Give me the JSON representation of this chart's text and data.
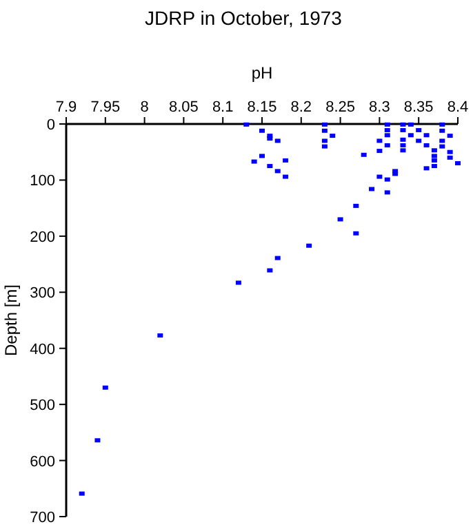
{
  "chart_data": {
    "type": "scatter",
    "title": "JDRP in October, 1973",
    "xlabel": "pH",
    "ylabel": "Depth [m]",
    "xlim": [
      7.9,
      8.4
    ],
    "xticks": [
      7.9,
      7.95,
      8,
      8.05,
      8.1,
      8.15,
      8.2,
      8.25,
      8.3,
      8.35,
      8.4
    ],
    "ylim": [
      700,
      0
    ],
    "yticks": [
      0,
      100,
      200,
      300,
      400,
      500,
      600,
      700
    ],
    "grid": false,
    "marker": "square",
    "series": [
      {
        "color": "#0000ff",
        "x": [
          8.13,
          8.15,
          8.16,
          8.16,
          8.17,
          8.15,
          8.14,
          8.18,
          8.16,
          8.17,
          8.18,
          8.23,
          8.23,
          8.24,
          8.23,
          8.23,
          8.28,
          8.3,
          8.3,
          8.31,
          8.31,
          8.31,
          8.31,
          8.33,
          8.33,
          8.33,
          8.33,
          8.33,
          8.34,
          8.34,
          8.35,
          8.35,
          8.36,
          8.36,
          8.38,
          8.38,
          8.38,
          8.38,
          8.39,
          8.37,
          8.37,
          8.37,
          8.37,
          8.36,
          8.39,
          8.39,
          8.4,
          8.3,
          8.31,
          8.32,
          8.32,
          8.31,
          8.29,
          8.27,
          8.25,
          8.27,
          8.21,
          8.17,
          8.16,
          8.12,
          8.02,
          7.95,
          7.94,
          7.92
        ],
        "values": [
          1,
          12,
          21,
          26,
          30,
          57,
          67,
          65,
          75,
          84,
          94,
          1,
          12,
          21,
          30,
          40,
          55,
          30,
          48,
          1,
          11,
          20,
          38,
          1,
          11,
          28,
          38,
          47,
          1,
          20,
          11,
          30,
          20,
          38,
          1,
          12,
          30,
          40,
          21,
          47,
          57,
          65,
          75,
          79,
          50,
          60,
          70,
          94,
          99,
          84,
          89,
          122,
          116,
          146,
          170,
          195,
          217,
          239,
          261,
          283,
          377,
          470,
          564,
          659
        ]
      }
    ]
  }
}
